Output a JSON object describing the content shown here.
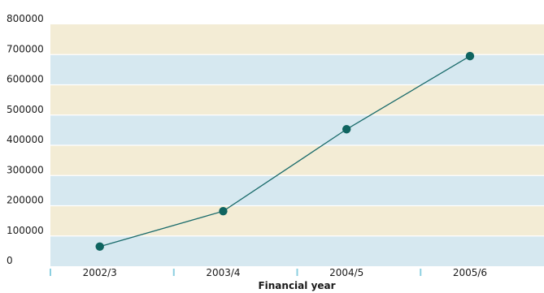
{
  "chart_data": {
    "type": "line",
    "categories": [
      "2002/3",
      "2003/4",
      "2004/5",
      "2005/6"
    ],
    "series": [
      {
        "values": [
          65000,
          182000,
          453000,
          695000
        ]
      }
    ],
    "xlabel": "Financial year",
    "ylabel": "",
    "ylim": [
      0,
      800000
    ],
    "yticks": [
      0,
      100000,
      200000,
      300000,
      400000,
      500000,
      600000,
      700000,
      800000
    ],
    "ytick_labels": [
      "0",
      "100000",
      "200000",
      "300000",
      "400000",
      "500000",
      "600000",
      "700000",
      "800000"
    ],
    "grid": true,
    "legend": "none",
    "colors": {
      "band_a": "#f3ecd5",
      "band_b": "#d6e8f0",
      "gridline": "#ffffff",
      "line": "#1a6b6b",
      "marker": "#0f6460",
      "xtick_mark": "#8ccfe0"
    }
  }
}
